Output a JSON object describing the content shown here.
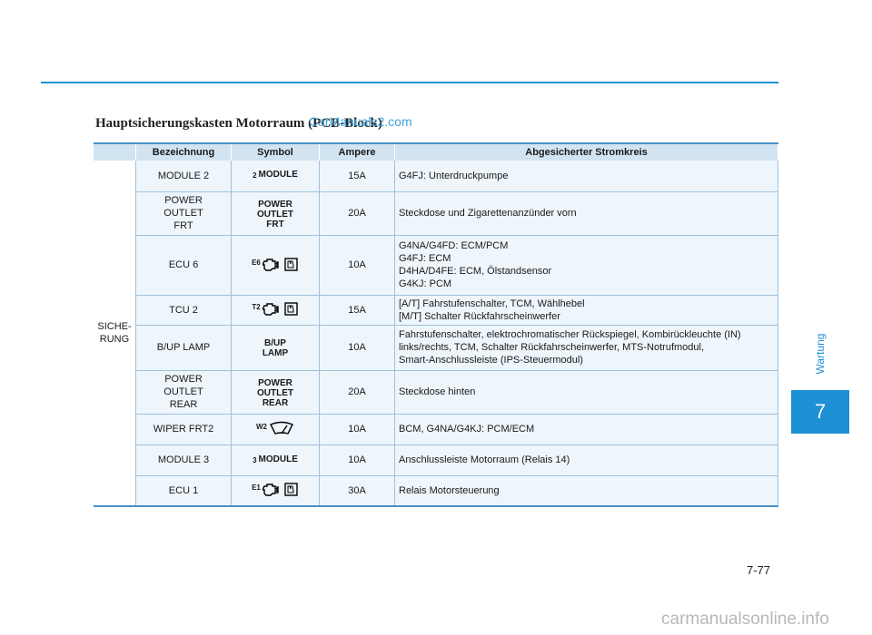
{
  "title": "Hauptsicherungskasten Motorraum (PCB-Block)",
  "watermark_top": "CarManuals2.com",
  "table": {
    "headers": [
      "Bezeichnung",
      "Symbol",
      "Ampere",
      "Abgesicherter Stromkreis"
    ],
    "group": "SICHE-\nRUNG",
    "rows": [
      {
        "name": "MODULE 2",
        "symbol": {
          "type": "text",
          "code": "2",
          "text": "MODULE"
        },
        "ampere": "15A",
        "circuit": "G4FJ: Unterdruckpumpe"
      },
      {
        "name": "POWER\nOUTLET\nFRT",
        "symbol": {
          "type": "text",
          "code": "",
          "text": "POWER\nOUTLET\nFRT"
        },
        "ampere": "20A",
        "circuit": "Steckdose und Zigarettenanzünder vorn"
      },
      {
        "name": "ECU 6",
        "symbol": {
          "type": "engine",
          "code": "E6"
        },
        "ampere": "10A",
        "circuit": "G4NA/G4FD: ECM/PCM\nG4FJ: ECM\nD4HA/D4FE: ECM, Ölstandsensor\nG4KJ: PCM"
      },
      {
        "name": "TCU 2",
        "symbol": {
          "type": "engine",
          "code": "T2"
        },
        "ampere": "15A",
        "circuit": "[A/T] Fahrstufenschalter, TCM, Wählhebel\n[M/T] Schalter Rückfahrscheinwerfer"
      },
      {
        "name": "B/UP LAMP",
        "symbol": {
          "type": "text",
          "code": "",
          "text": "B/UP\nLAMP"
        },
        "ampere": "10A",
        "circuit": "Fahrstufenschalter, elektrochromatischer Rückspiegel, Kombirückleuchte (IN)\nlinks/rechts, TCM, Schalter Rückfahrscheinwerfer, MTS-Notrufmodul,\nSmart-Anschlussleiste (IPS-Steuermodul)"
      },
      {
        "name": "POWER\nOUTLET\nREAR",
        "symbol": {
          "type": "text",
          "code": "",
          "text": "POWER\nOUTLET\nREAR"
        },
        "ampere": "20A",
        "circuit": "Steckdose hinten"
      },
      {
        "name": "WIPER FRT2",
        "symbol": {
          "type": "wiper",
          "code": "W2"
        },
        "ampere": "10A",
        "circuit": "BCM, G4NA/G4KJ: PCM/ECM"
      },
      {
        "name": "MODULE 3",
        "symbol": {
          "type": "text",
          "code": "3",
          "text": "MODULE"
        },
        "ampere": "10A",
        "circuit": "Anschlussleiste Motorraum (Relais 14)"
      },
      {
        "name": "ECU 1",
        "symbol": {
          "type": "engine",
          "code": "E1"
        },
        "ampere": "30A",
        "circuit": "Relais Motorsteuerung"
      }
    ]
  },
  "side_tab": {
    "label": "Wartung",
    "number": "7"
  },
  "page_number": "7-77",
  "watermark_bottom": "carmanualsonline.info",
  "colors": {
    "accent": "#1e90d6",
    "header_bg": "#d2e4f1",
    "cell_bg": "#eef5fb"
  }
}
